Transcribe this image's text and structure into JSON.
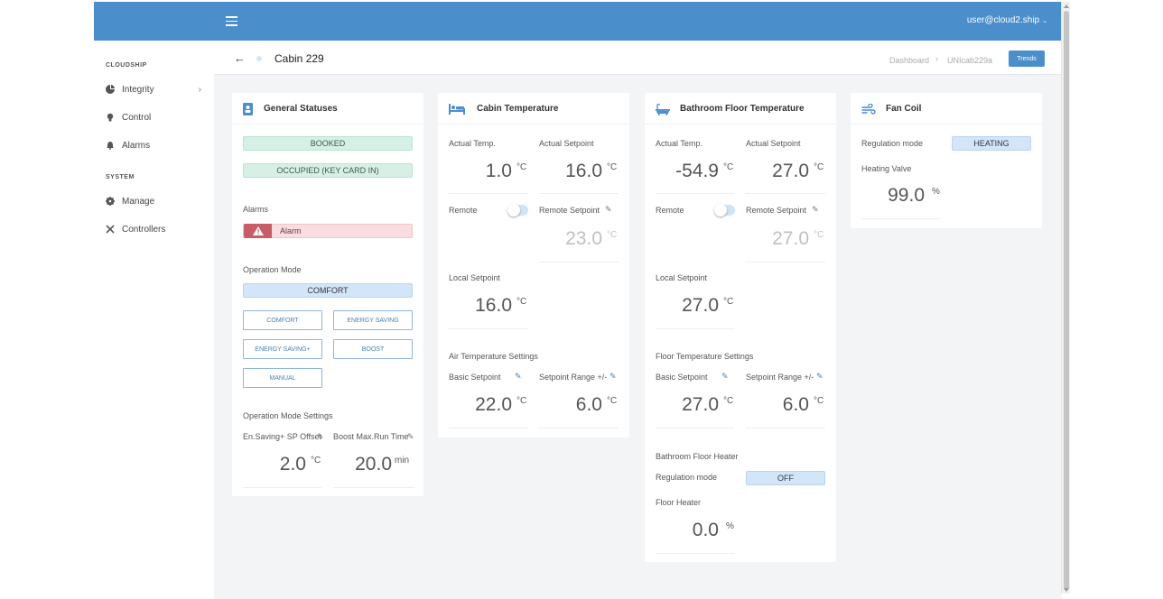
{
  "topbar": {
    "user": "user@cloud2.ship",
    "caret": "⌄"
  },
  "sidebar": {
    "section1": "CLOUDSHIP",
    "items1": [
      {
        "label": "Integrity",
        "icon": "pie-chart-icon",
        "chevron": "›"
      },
      {
        "label": "Control",
        "icon": "lightbulb-icon"
      },
      {
        "label": "Alarms",
        "icon": "bell-icon"
      }
    ],
    "section2": "SYSTEM",
    "items2": [
      {
        "label": "Manage",
        "icon": "gear-icon"
      },
      {
        "label": "Controllers",
        "icon": "tools-icon"
      }
    ]
  },
  "header": {
    "back": "←",
    "title": "Cabin 229",
    "breadcrumb": [
      "Dashboard",
      "UNIcab229a"
    ],
    "crumb_sep": "›",
    "trends": "Trends"
  },
  "general": {
    "title": "General Statuses",
    "statuses": [
      "BOOKED",
      "OCCUPIED (KEY CARD IN)"
    ],
    "alarms_label": "Alarms",
    "alarm_text": "Alarm",
    "op_mode_label": "Operation Mode",
    "op_mode_current": "COMFORT",
    "mode_buttons": [
      "COMFORT",
      "ENERGY SAVING",
      "ENERGY SAVING+",
      "BOOST",
      "MANUAL"
    ],
    "settings_label": "Operation Mode Settings",
    "en_saving_label": "En.Saving+ SP Offset",
    "en_saving_value": "2.0",
    "en_saving_unit": "°C",
    "boost_label": "Boost Max.Run Time",
    "boost_value": "20.0",
    "boost_unit": "min"
  },
  "cabin": {
    "title": "Cabin Temperature",
    "actual_temp_label": "Actual Temp.",
    "actual_temp": "1.0",
    "actual_sp_label": "Actual Setpoint",
    "actual_sp": "16.0",
    "remote_label": "Remote",
    "remote_on": false,
    "remote_sp_label": "Remote Setpoint",
    "remote_sp": "23.0",
    "local_sp_label": "Local Setpoint",
    "local_sp": "16.0",
    "settings_label": "Air Temperature Settings",
    "basic_sp_label": "Basic Setpoint",
    "basic_sp": "22.0",
    "range_label": "Setpoint Range +/-",
    "range": "6.0",
    "unit": "°C"
  },
  "bath": {
    "title": "Bathroom Floor Temperature",
    "actual_temp_label": "Actual Temp.",
    "actual_temp": "-54.9",
    "actual_sp_label": "Actual Setpoint",
    "actual_sp": "27.0",
    "remote_label": "Remote",
    "remote_on": false,
    "remote_sp_label": "Remote Setpoint",
    "remote_sp": "27.0",
    "local_sp_label": "Local Setpoint",
    "local_sp": "27.0",
    "settings_label": "Floor Temperature Settings",
    "basic_sp_label": "Basic Setpoint",
    "basic_sp": "27.0",
    "range_label": "Setpoint Range +/-",
    "range": "6.0",
    "heater_label": "Bathroom Floor Heater",
    "reg_mode_label": "Regulation mode",
    "reg_mode": "OFF",
    "floor_heater_label": "Floor Heater",
    "floor_heater": "0.0",
    "pct": "%",
    "unit": "°C"
  },
  "fan": {
    "title": "Fan Coil",
    "reg_mode_label": "Regulation mode",
    "reg_mode": "HEATING",
    "valve_label": "Heating Valve",
    "valve": "99.0",
    "pct": "%"
  },
  "colors": {
    "topbar": "#4a8ecb",
    "accent": "#4a8ecb",
    "alarm": "#c95d67",
    "ok": "#d7f0e6"
  }
}
